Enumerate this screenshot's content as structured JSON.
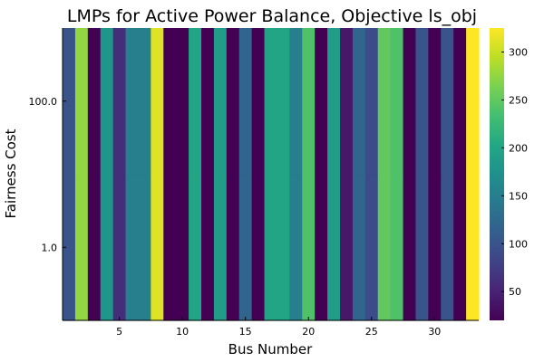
{
  "chart_data": {
    "type": "heatmap",
    "title": "LMPs for Active Power Balance, Objective ls_obj",
    "xlabel": "Bus Number",
    "ylabel": "Fairness Cost",
    "x": [
      1,
      2,
      3,
      4,
      5,
      6,
      7,
      8,
      9,
      10,
      11,
      12,
      13,
      14,
      15,
      16,
      17,
      18,
      19,
      20,
      21,
      22,
      23,
      24,
      25,
      26,
      27,
      28,
      29,
      30,
      31,
      32,
      33
    ],
    "x_ticks": [
      5,
      10,
      15,
      20,
      25,
      30
    ],
    "xlim": [
      0.5,
      33.5
    ],
    "y_categories": [
      "1.0",
      "100.0"
    ],
    "y_scale": "log",
    "values": [
      [
        100,
        275,
        20,
        180,
        60,
        150,
        150,
        310,
        20,
        20,
        200,
        20,
        190,
        20,
        120,
        20,
        200,
        200,
        150,
        240,
        20,
        190,
        40,
        120,
        90,
        250,
        240,
        20,
        100,
        20,
        100,
        20,
        325
      ],
      [
        100,
        275,
        20,
        180,
        60,
        150,
        150,
        310,
        20,
        20,
        200,
        20,
        190,
        20,
        120,
        20,
        200,
        200,
        150,
        240,
        20,
        190,
        40,
        120,
        90,
        250,
        240,
        20,
        100,
        20,
        100,
        20,
        325
      ]
    ],
    "colorscale": "viridis",
    "clim": [
      20,
      325
    ],
    "colorbar_ticks": [
      50,
      100,
      150,
      200,
      250,
      300
    ],
    "grid": false,
    "legend": "colorbar-right"
  }
}
